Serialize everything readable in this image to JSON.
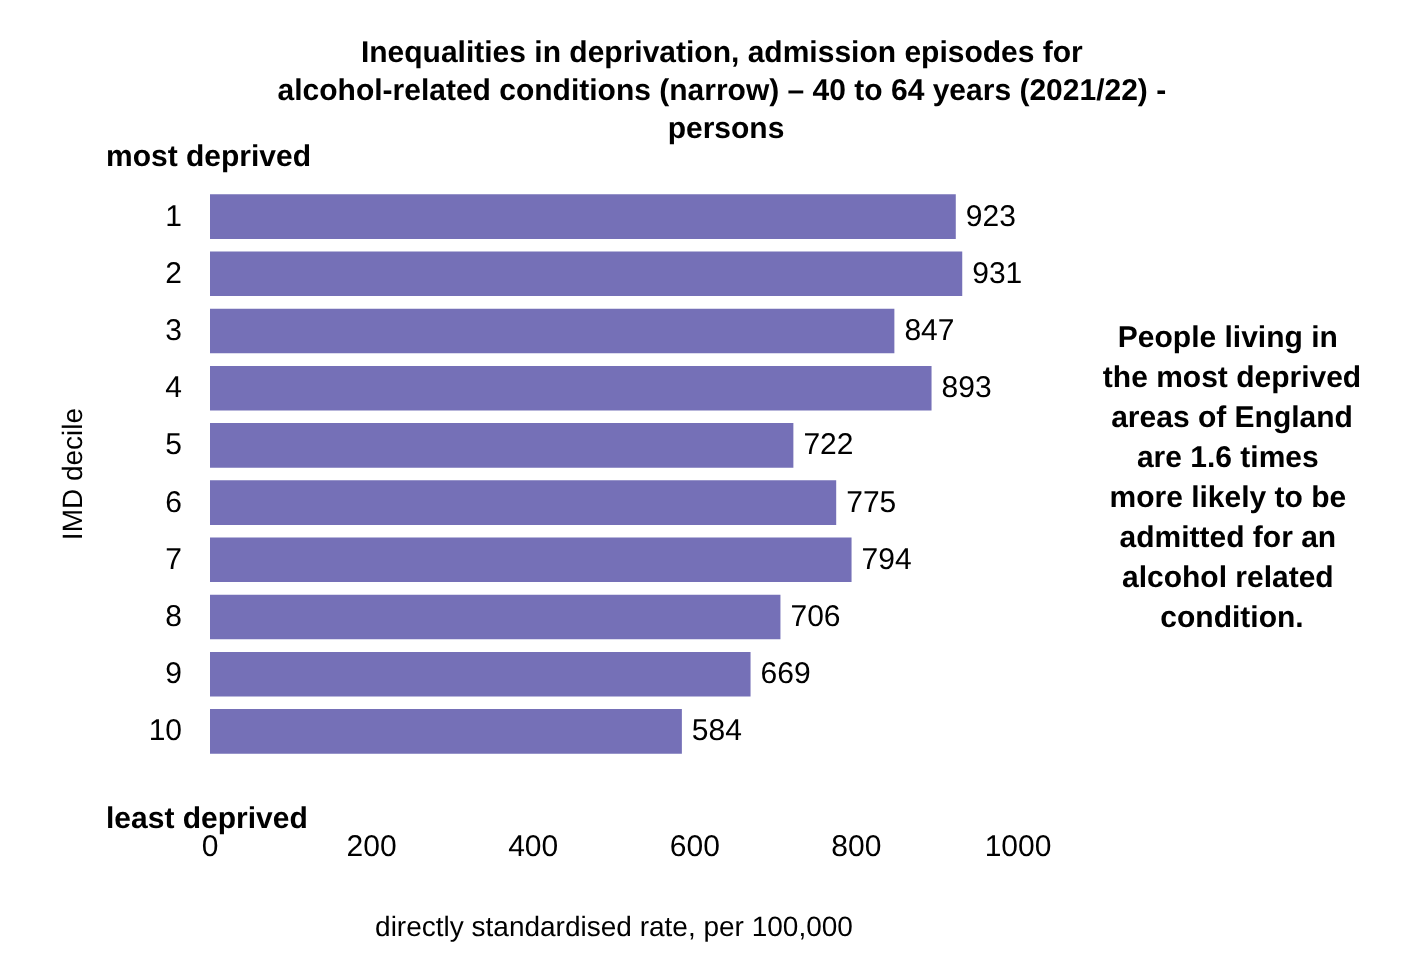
{
  "chart_data": {
    "type": "bar",
    "orientation": "horizontal",
    "title": "Inequalities in deprivation, admission episodes for alcohol-related conditions (narrow) – 40 to 64 years (2021/22) - persons",
    "xlabel": "directly standardised rate, per 100,000",
    "ylabel": "IMD decile",
    "categories": [
      "1",
      "2",
      "3",
      "4",
      "5",
      "6",
      "7",
      "8",
      "9",
      "10"
    ],
    "values": [
      923,
      931,
      847,
      893,
      722,
      775,
      794,
      706,
      669,
      584
    ],
    "color": "#7570b7",
    "data_labels": true,
    "grid": false,
    "xlim": [
      0,
      1000
    ],
    "xticks": [
      0,
      200,
      400,
      600,
      800,
      1000
    ],
    "annotations": [
      "most deprived",
      "least deprived",
      "People living in the most deprived areas of England are 1.6 times more likely to be admitted for an alcohol related condition."
    ]
  }
}
